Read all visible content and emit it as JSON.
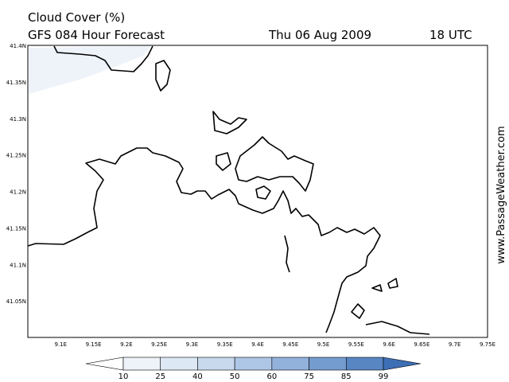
{
  "header": {
    "title": "Cloud Cover (%)",
    "subtitle": "GFS 084 Hour Forecast",
    "date": "Thu 06 Aug 2009",
    "time": "18 UTC"
  },
  "watermark": "www.PassageWeather.com",
  "map": {
    "lat_labels": [
      "41.4N",
      "41.35N",
      "41.3N",
      "41.25N",
      "41.2N",
      "41.15N",
      "41.1N",
      "41.05N"
    ],
    "lon_labels": [
      "9.1E",
      "9.15E",
      "9.2E",
      "9.25E",
      "9.3E",
      "9.35E",
      "9.4E",
      "9.45E",
      "9.5E",
      "9.55E",
      "9.6E",
      "9.65E",
      "9.7E",
      "9.75E"
    ]
  },
  "colorbar": {
    "levels": [
      10,
      25,
      40,
      50,
      60,
      75,
      85,
      99
    ],
    "colors": [
      "#ffffff",
      "#eef3fa",
      "#dde8f5",
      "#c8d9ee",
      "#afc7e6",
      "#93b2db",
      "#759ccf",
      "#5886c3",
      "#3d6fb6"
    ]
  }
}
